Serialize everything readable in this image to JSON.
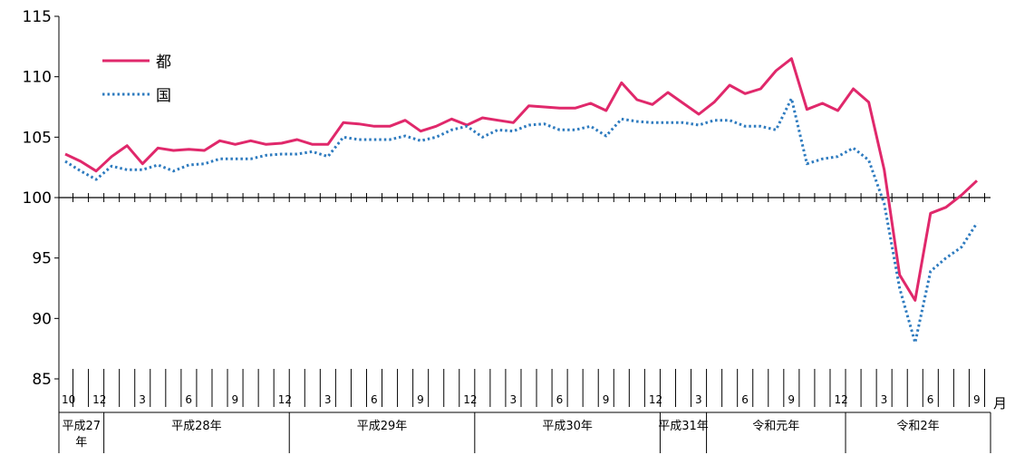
{
  "chart_data": {
    "type": "line",
    "ylim": [
      85,
      115
    ],
    "yticks": [
      "85",
      "90",
      "95",
      "100",
      "105",
      "110",
      "115"
    ],
    "x_month_labels": [
      "10",
      "",
      "12",
      "",
      "",
      "3",
      "",
      "",
      "6",
      "",
      "",
      "9",
      "",
      "",
      "12",
      "",
      "",
      "3",
      "",
      "",
      "6",
      "",
      "",
      "9",
      "",
      "",
      "12",
      "",
      "",
      "3",
      "",
      "",
      "6",
      "",
      "",
      "9",
      "",
      "",
      "12",
      "",
      "",
      "3",
      "",
      "",
      "6",
      "",
      "",
      "9",
      "",
      "",
      "12",
      "",
      "",
      "3",
      "",
      "",
      "6",
      "",
      "",
      "9"
    ],
    "x_unit": "月",
    "eras": [
      {
        "label": "平成27\n年",
        "start": 0,
        "end": 2
      },
      {
        "label": "平成28年",
        "start": 3,
        "end": 14
      },
      {
        "label": "平成29年",
        "start": 15,
        "end": 26
      },
      {
        "label": "平成30年",
        "start": 27,
        "end": 38
      },
      {
        "label": "平成31年",
        "start": 39,
        "end": 41
      },
      {
        "label": "令和元年",
        "start": 42,
        "end": 50
      },
      {
        "label": "令和2年",
        "start": 51,
        "end": 59
      }
    ],
    "series": [
      {
        "name": "都",
        "color": "#e0286b",
        "style": "solid",
        "values": [
          103.6,
          103.0,
          102.2,
          103.4,
          104.3,
          102.8,
          104.1,
          103.9,
          104.0,
          103.9,
          104.7,
          104.4,
          104.7,
          104.4,
          104.5,
          104.8,
          104.4,
          104.4,
          106.2,
          106.1,
          105.9,
          105.9,
          106.4,
          105.5,
          105.9,
          106.5,
          106.0,
          106.6,
          106.4,
          106.2,
          107.6,
          107.5,
          107.4,
          107.4,
          107.8,
          107.2,
          109.5,
          108.1,
          107.7,
          108.7,
          107.8,
          106.9,
          107.9,
          109.3,
          108.6,
          109.0,
          110.5,
          111.5,
          107.3,
          107.8,
          107.2,
          109.0,
          107.9,
          102.3,
          93.6,
          91.5,
          98.7,
          99.2,
          100.2,
          101.4
        ]
      },
      {
        "name": "国",
        "color": "#2e7bbf",
        "style": "dotted",
        "values": [
          103.0,
          102.2,
          101.5,
          102.6,
          102.3,
          102.3,
          102.7,
          102.2,
          102.7,
          102.8,
          103.2,
          103.2,
          103.2,
          103.5,
          103.6,
          103.6,
          103.8,
          103.4,
          105.0,
          104.8,
          104.8,
          104.8,
          105.1,
          104.7,
          105.0,
          105.6,
          105.9,
          105.0,
          105.6,
          105.5,
          106.0,
          106.1,
          105.6,
          105.6,
          105.9,
          105.1,
          106.5,
          106.3,
          106.2,
          106.2,
          106.2,
          106.0,
          106.4,
          106.4,
          105.9,
          105.9,
          105.6,
          108.2,
          102.8,
          103.2,
          103.4,
          104.1,
          103.1,
          99.5,
          92.5,
          88.0,
          93.9,
          95.0,
          95.9,
          97.9
        ]
      }
    ]
  }
}
